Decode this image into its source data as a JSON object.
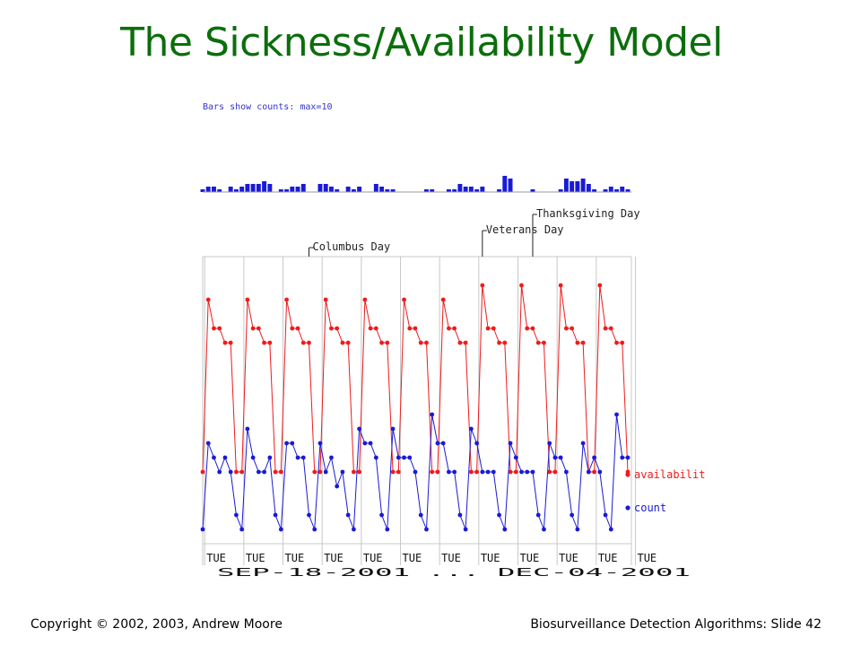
{
  "slide": {
    "title": "The Sickness/Availability Model",
    "footer_left": "Copyright © 2002, 2003, Andrew Moore",
    "footer_right": "Biosurveillance Detection Algorithms: Slide 42"
  },
  "colors": {
    "title": "#0b6e0b",
    "availability": "#ee1c1c",
    "count": "#1a1ad6",
    "histogram": "#1a1ad6",
    "grid": "#c8c8c8",
    "annotation": "#222222"
  },
  "chart_data": {
    "type": "line",
    "histogram_label": "Bars show counts: max=10",
    "histogram_values": [
      1,
      2,
      2,
      1,
      0,
      2,
      1,
      2,
      3,
      3,
      3,
      4,
      3,
      0,
      1,
      1,
      2,
      2,
      3,
      0,
      0,
      3,
      3,
      2,
      1,
      0,
      2,
      1,
      2,
      0,
      0,
      3,
      2,
      1,
      1,
      0,
      0,
      0,
      0,
      0,
      1,
      1,
      0,
      0,
      1,
      1,
      3,
      2,
      2,
      1,
      2,
      0,
      0,
      1,
      6,
      5,
      0,
      0,
      0,
      1,
      0,
      0,
      0,
      0,
      1,
      5,
      4,
      4,
      5,
      3,
      1,
      0,
      1,
      2,
      1,
      2,
      1
    ],
    "holidays": [
      {
        "label": "Columbus Day",
        "index": 19
      },
      {
        "label": "Veterans Day",
        "index": 50
      },
      {
        "label": "Thanksgiving Day",
        "index": 59
      }
    ],
    "x_tick_day": "TUE",
    "x_tick_indices": [
      1,
      8,
      15,
      22,
      29,
      36,
      43,
      50,
      57,
      64,
      71,
      78
    ],
    "x_dates_label": "SEP-18-2001 ... DEC-04-2001",
    "x_dates_end": "DEC-04-2001",
    "series": [
      {
        "name": "availabilit",
        "values": [
          5,
          17,
          15,
          15,
          14,
          14,
          5,
          5,
          17,
          15,
          15,
          14,
          14,
          5,
          5,
          17,
          15,
          15,
          14,
          14,
          5,
          5,
          17,
          15,
          15,
          14,
          14,
          5,
          5,
          17,
          15,
          15,
          14,
          14,
          5,
          5,
          17,
          15,
          15,
          14,
          14,
          5,
          5,
          17,
          15,
          15,
          14,
          14,
          5,
          5,
          18,
          15,
          15,
          14,
          14,
          5,
          5,
          18,
          15,
          15,
          14,
          14,
          5,
          5,
          18,
          15,
          15,
          14,
          14,
          5,
          5,
          18,
          15,
          15,
          14,
          14,
          5
        ]
      },
      {
        "name": "count",
        "values": [
          1,
          7,
          6,
          5,
          6,
          5,
          2,
          1,
          8,
          6,
          5,
          5,
          6,
          2,
          1,
          7,
          7,
          6,
          6,
          2,
          1,
          7,
          5,
          6,
          4,
          5,
          2,
          1,
          8,
          7,
          7,
          6,
          2,
          1,
          8,
          6,
          6,
          6,
          5,
          2,
          1,
          9,
          7,
          7,
          5,
          5,
          2,
          1,
          8,
          7,
          5,
          5,
          5,
          2,
          1,
          7,
          6,
          5,
          5,
          5,
          2,
          1,
          7,
          6,
          6,
          5,
          2,
          1,
          7,
          5,
          6,
          5,
          2,
          1,
          9,
          6,
          6
        ]
      }
    ],
    "y_range": [
      0,
      20
    ]
  }
}
